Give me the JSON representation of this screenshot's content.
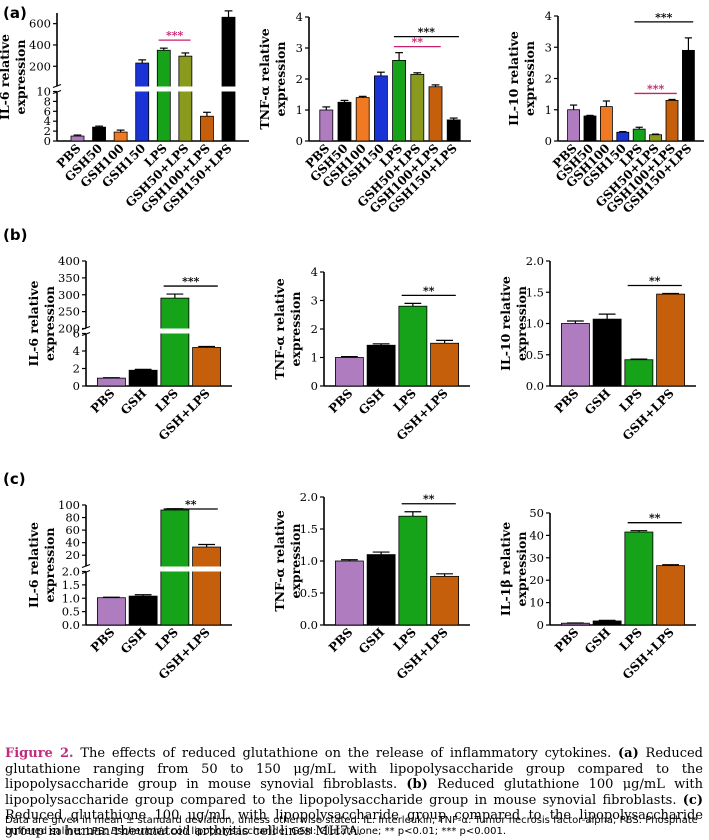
{
  "colors": {
    "PBS": "#b07cc0",
    "GSH50": "#000000",
    "GSH100": "#f07a24",
    "GSH150": "#1a33d6",
    "LPS": "#16a31a",
    "GSH50+LPS": "#8a9a1e",
    "GSH100+LPS": "#c65f0c",
    "GSH150+LPS": "#000000",
    "GSH": "#000000",
    "GSH+LPS": "#c65f0c",
    "sig_magenta": "#c8206e",
    "sig_black": "#000000"
  },
  "panel_labels": [
    "(a)",
    "(b)",
    "(c)"
  ],
  "chart_data": [
    {
      "id": "a1",
      "panel": "(a)",
      "type": "bar",
      "ylabel": [
        "IL-6 relative",
        "expression"
      ],
      "categories": [
        "PBS",
        "GSH50",
        "GSH100",
        "GSH150",
        "LPS",
        "GSH50+LPS",
        "GSH100+LPS",
        "GSH150+LPS"
      ],
      "values": [
        1.0,
        2.8,
        1.8,
        230,
        350,
        295,
        5.0,
        660
      ],
      "errors": [
        0.2,
        0.2,
        0.4,
        30,
        20,
        30,
        0.8,
        60
      ],
      "broken_axis": {
        "lower_ylim": [
          0,
          10
        ],
        "lower_ticks": [
          "0",
          "2",
          "4",
          "6",
          "8",
          "10"
        ],
        "upper_ylim": [
          10,
          700
        ],
        "upper_ticks": [
          "200",
          "400",
          "600"
        ]
      },
      "significance": [
        {
          "from": "LPS",
          "to": "GSH50+LPS",
          "label": "***",
          "color": "magenta"
        }
      ]
    },
    {
      "id": "a2",
      "panel": "(a)",
      "type": "bar",
      "ylabel": [
        "TNF-α relative",
        "expression"
      ],
      "categories": [
        "PBS",
        "GSH50",
        "GSH100",
        "GSH150",
        "LPS",
        "GSH50+LPS",
        "GSH100+LPS",
        "GSH150+LPS"
      ],
      "values": [
        1.0,
        1.25,
        1.4,
        2.1,
        2.6,
        2.15,
        1.75,
        0.68
      ],
      "errors": [
        0.1,
        0.06,
        0.04,
        0.12,
        0.25,
        0.05,
        0.06,
        0.06
      ],
      "ylim": [
        0,
        4
      ],
      "yticks": [
        "0",
        "1",
        "2",
        "3",
        "4"
      ],
      "significance": [
        {
          "from": "LPS",
          "to": "GSH150+LPS",
          "label": "***",
          "color": "black"
        },
        {
          "from": "LPS",
          "to": "GSH100+LPS",
          "label": "**",
          "color": "magenta"
        }
      ]
    },
    {
      "id": "a3",
      "panel": "(a)",
      "type": "bar",
      "ylabel": [
        "IL-10 relative",
        "expression"
      ],
      "categories": [
        "PBS",
        "GSH50",
        "GSH100",
        "GSH150",
        "LPS",
        "GSH50+LPS",
        "GSH100+LPS",
        "GSH150+LPS"
      ],
      "values": [
        1.0,
        0.8,
        1.1,
        0.28,
        0.38,
        0.2,
        1.3,
        2.9
      ],
      "errors": [
        0.15,
        0.02,
        0.18,
        0.02,
        0.06,
        0.02,
        0.03,
        0.4
      ],
      "ylim": [
        0,
        4
      ],
      "yticks": [
        "0",
        "1",
        "2",
        "3",
        "4"
      ],
      "significance": [
        {
          "from": "LPS",
          "to": "GSH150+LPS",
          "label": "***",
          "color": "black"
        },
        {
          "from": "LPS",
          "to": "GSH100+LPS",
          "label": "***",
          "color": "magenta"
        }
      ]
    },
    {
      "id": "b1",
      "panel": "(b)",
      "type": "bar",
      "ylabel": [
        "IL-6 relative",
        "expression"
      ],
      "categories": [
        "PBS",
        "GSH",
        "LPS",
        "GSH+LPS"
      ],
      "values": [
        0.9,
        1.8,
        290,
        4.4
      ],
      "errors": [
        0.05,
        0.1,
        12,
        0.12
      ],
      "broken_axis": {
        "lower_ylim": [
          0,
          6
        ],
        "lower_ticks": [
          "0",
          "2",
          "4",
          "6"
        ],
        "upper_ylim": [
          200,
          400
        ],
        "upper_ticks": [
          "200",
          "250",
          "300",
          "350",
          "400"
        ]
      },
      "significance": [
        {
          "from": "LPS",
          "to": "GSH+LPS",
          "label": "***",
          "color": "black"
        }
      ]
    },
    {
      "id": "b2",
      "panel": "(b)",
      "type": "bar",
      "ylabel": [
        "TNF-α relative",
        "expression"
      ],
      "categories": [
        "PBS",
        "GSH",
        "LPS",
        "GSH+LPS"
      ],
      "values": [
        1.0,
        1.43,
        2.8,
        1.5
      ],
      "errors": [
        0.03,
        0.05,
        0.1,
        0.1
      ],
      "ylim": [
        0,
        4
      ],
      "yticks": [
        "0",
        "1",
        "2",
        "3",
        "4"
      ],
      "significance": [
        {
          "from": "LPS",
          "to": "GSH+LPS",
          "label": "**",
          "color": "black"
        }
      ]
    },
    {
      "id": "b3",
      "panel": "(b)",
      "type": "bar",
      "ylabel": [
        "IL-10 relative",
        "expression"
      ],
      "categories": [
        "PBS",
        "GSH",
        "LPS",
        "GSH+LPS"
      ],
      "values": [
        1.0,
        1.07,
        0.42,
        1.47
      ],
      "errors": [
        0.04,
        0.08,
        0.01,
        0.01
      ],
      "ylim": [
        0,
        2.0
      ],
      "yticks": [
        "0.0",
        "0.5",
        "1.0",
        "1.5",
        "2.0"
      ],
      "significance": [
        {
          "from": "LPS",
          "to": "GSH+LPS",
          "label": "**",
          "color": "black"
        }
      ]
    },
    {
      "id": "c1",
      "panel": "(c)",
      "type": "bar",
      "ylabel": [
        "IL-6 relative",
        "expression"
      ],
      "categories": [
        "PBS",
        "GSH",
        "LPS",
        "GSH+LPS"
      ],
      "values": [
        1.02,
        1.08,
        92,
        33
      ],
      "errors": [
        0.02,
        0.05,
        2,
        4
      ],
      "broken_axis": {
        "lower_ylim": [
          0,
          2.0
        ],
        "lower_ticks": [
          "0.0",
          "0.5",
          "1.0",
          "1.5",
          "2.0"
        ],
        "upper_ylim": [
          2,
          100
        ],
        "upper_ticks": [
          "20",
          "40",
          "60",
          "80",
          "100"
        ]
      },
      "significance": [
        {
          "from": "LPS",
          "to": "GSH+LPS",
          "label": "**",
          "color": "black"
        }
      ]
    },
    {
      "id": "c2",
      "panel": "(c)",
      "type": "bar",
      "ylabel": [
        "TNF-α relative",
        "expression"
      ],
      "categories": [
        "PBS",
        "GSH",
        "LPS",
        "GSH+LPS"
      ],
      "values": [
        1.0,
        1.1,
        1.7,
        0.76
      ],
      "errors": [
        0.02,
        0.04,
        0.07,
        0.04
      ],
      "ylim": [
        0,
        2.0
      ],
      "yticks": [
        "0.0",
        "0.5",
        "1.0",
        "1.5",
        "2.0"
      ],
      "significance": [
        {
          "from": "LPS",
          "to": "GSH+LPS",
          "label": "**",
          "color": "black"
        }
      ]
    },
    {
      "id": "c3",
      "panel": "(c)",
      "type": "bar",
      "ylabel": [
        "IL-1β relative",
        "expression"
      ],
      "categories": [
        "PBS",
        "GSH",
        "LPS",
        "GSH+LPS"
      ],
      "values": [
        0.8,
        1.8,
        41.5,
        26.5
      ],
      "errors": [
        0.1,
        0.3,
        0.6,
        0.4
      ],
      "ylim": [
        0,
        50
      ],
      "yticks": [
        "0",
        "10",
        "20",
        "30",
        "40",
        "50"
      ],
      "significance": [
        {
          "from": "LPS",
          "to": "GSH+LPS",
          "label": "**",
          "color": "black"
        }
      ]
    }
  ],
  "caption": {
    "figure_label": "Figure 2.",
    "intro": " The effects of reduced glutathione on the release of inflammatory cytokines. ",
    "a_label": "(a)",
    "a_text": " Reduced glutathione ranging from 50 to 150 μg/mL with lipopolysaccharide group compared to the lipopolysaccharide group in mouse synovial fibroblasts. ",
    "b_label": "(b)",
    "b_text": " Reduced glutathione 100 μg/mL with lipopolysaccharide group compared to the lipopolysaccharide group in mouse synovial fibroblasts. ",
    "c_label": "(c)",
    "c_text": " Reduced glutathione 100 μg/mL with lipopolysaccharide group compared to the lipopolysaccharide group in human rheumatoid arthritis cell lines MH7A."
  },
  "notes": {
    "part1": "Data are given in mean ± standard deviation, unless otherwise stated. IL: Interleukin; TNF-α: Tumor necrosis factor-alpha; PBS: Phosphate buffered saline; LPS: ",
    "species": "Escherichia coli",
    "part2": " lipopolysaccharide; GSH: Glutathione; ** p<0.01; *** p<0.001."
  }
}
